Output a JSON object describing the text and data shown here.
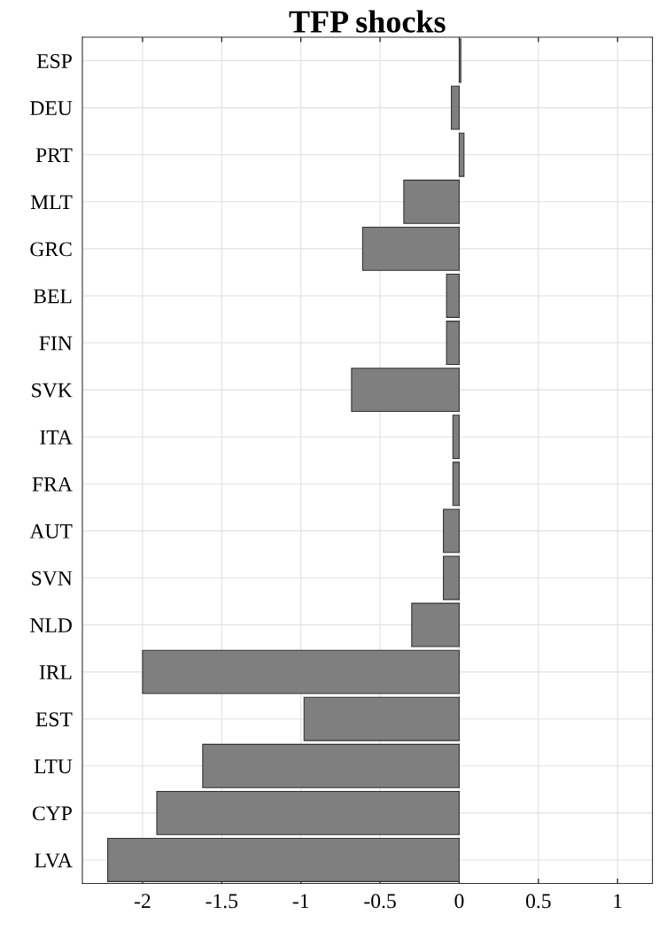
{
  "chart_data": {
    "type": "bar",
    "orientation": "horizontal",
    "title": "TFP shocks",
    "categories": [
      "ESP",
      "DEU",
      "PRT",
      "MLT",
      "GRC",
      "BEL",
      "FIN",
      "SVK",
      "ITA",
      "FRA",
      "AUT",
      "SVN",
      "NLD",
      "IRL",
      "EST",
      "LTU",
      "CYP",
      "LVA"
    ],
    "values": [
      0.01,
      -0.05,
      0.03,
      -0.35,
      -0.61,
      -0.08,
      -0.08,
      -0.68,
      -0.04,
      -0.04,
      -0.1,
      -0.1,
      -0.3,
      -2.0,
      -0.98,
      -1.62,
      -1.91,
      -2.22
    ],
    "color": "#7f7f7f",
    "xlim": [
      -2.38,
      1.22
    ],
    "xticks": [
      -2,
      -1.5,
      -1,
      -0.5,
      0,
      0.5,
      1
    ],
    "grid": true
  }
}
